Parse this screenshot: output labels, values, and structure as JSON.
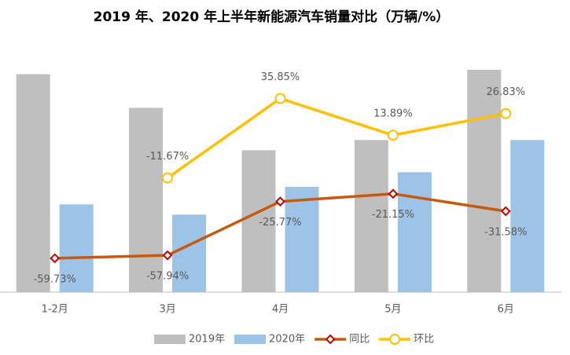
{
  "chart_data": {
    "type": "bar-line",
    "title": "2019 年、2020 年上半年新能源汽车销量对比（万辆/%）",
    "categories": [
      "1-2月",
      "3月",
      "4月",
      "5月",
      "6月"
    ],
    "ylim": [
      0,
      16
    ],
    "y2lim": [
      -80,
      60
    ],
    "series": [
      {
        "name": "2019年",
        "type": "bar",
        "color": "#bfbfbf",
        "values": [
          14.9,
          12.6,
          9.7,
          10.4,
          15.2
        ]
      },
      {
        "name": "2020年",
        "type": "bar",
        "color": "#9dc3e6",
        "values": [
          6.0,
          5.3,
          7.2,
          8.2,
          10.4
        ]
      },
      {
        "name": "同比",
        "type": "line",
        "axis": "y2",
        "color": "#c55a11",
        "marker": "diamond",
        "marker_color": "#c00000",
        "values": [
          -59.73,
          -57.94,
          -25.77,
          -21.15,
          -31.58
        ],
        "value_labels": [
          "-59.73%",
          "-57.94%",
          "-25.77%",
          "-21.15%",
          "-31.58%"
        ],
        "label_position": "below"
      },
      {
        "name": "环比",
        "type": "line",
        "axis": "y2",
        "color": "#ffc000",
        "marker": "circle",
        "marker_color": "#ffc000",
        "values": [
          null,
          -11.67,
          35.85,
          13.89,
          26.83
        ],
        "value_labels": [
          null,
          "-11.67%",
          "35.85%",
          "13.89%",
          "26.83%"
        ],
        "label_position": "above"
      }
    ],
    "legend": "bottom"
  }
}
